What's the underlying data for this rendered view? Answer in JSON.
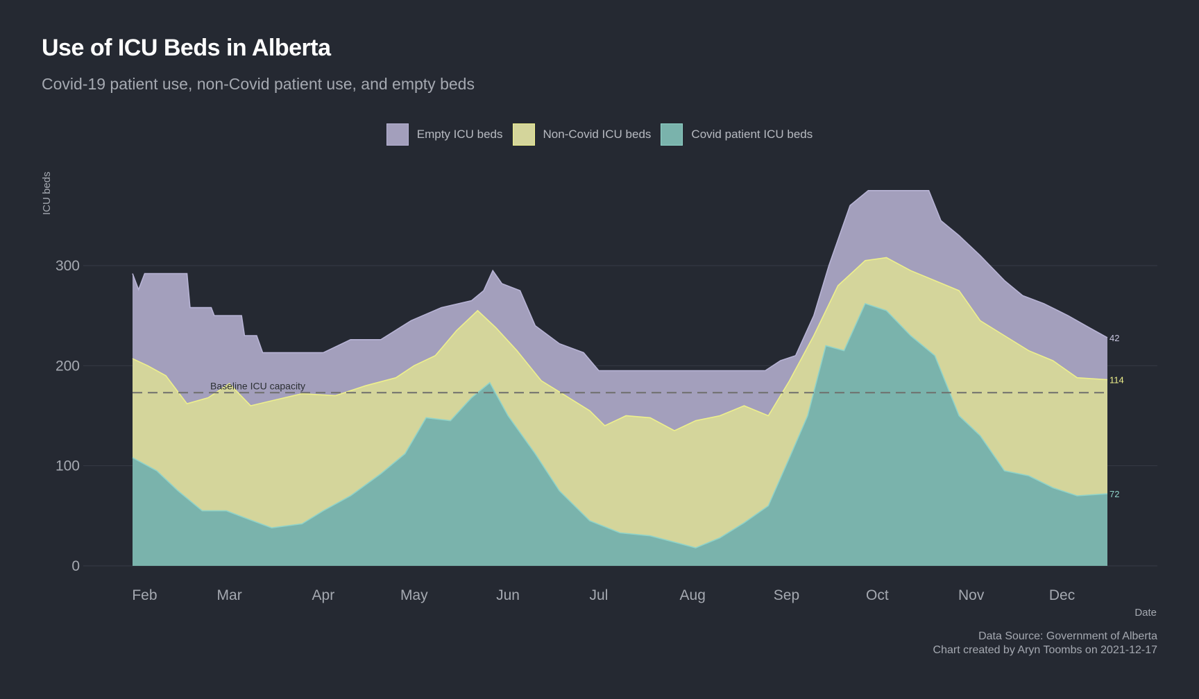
{
  "chart_data": {
    "type": "area",
    "stacked": true,
    "title": "Use of ICU Beds in Alberta",
    "subtitle": "Covid-19 patient use, non-Covid patient use, and empty beds",
    "ylabel": "ICU beds",
    "xlabel": "Date",
    "ylim": [
      0,
      380
    ],
    "yticks": [
      0,
      100,
      200,
      300
    ],
    "grid": true,
    "legend_position": "top",
    "x_range": [
      "2021-01-28",
      "2021-12-16"
    ],
    "xticks": [
      {
        "date": "2021-02-01",
        "label": "Feb"
      },
      {
        "date": "2021-03-01",
        "label": "Mar"
      },
      {
        "date": "2021-04-01",
        "label": "Apr"
      },
      {
        "date": "2021-05-01",
        "label": "May"
      },
      {
        "date": "2021-06-01",
        "label": "Jun"
      },
      {
        "date": "2021-07-01",
        "label": "Jul"
      },
      {
        "date": "2021-08-01",
        "label": "Aug"
      },
      {
        "date": "2021-09-01",
        "label": "Sep"
      },
      {
        "date": "2021-10-01",
        "label": "Oct"
      },
      {
        "date": "2021-11-01",
        "label": "Nov"
      },
      {
        "date": "2021-12-01",
        "label": "Dec"
      }
    ],
    "baseline": {
      "value": 173,
      "label": "Baseline ICU capacity"
    },
    "series": [
      {
        "name": "Covid patient ICU beds",
        "color": "#7ab3ac",
        "stroke": "#8fd3c9",
        "end_label": "72",
        "points": [
          [
            "2021-01-28",
            108
          ],
          [
            "2021-02-05",
            95
          ],
          [
            "2021-02-12",
            75
          ],
          [
            "2021-02-20",
            55
          ],
          [
            "2021-02-28",
            55
          ],
          [
            "2021-03-07",
            47
          ],
          [
            "2021-03-15",
            38
          ],
          [
            "2021-03-25",
            42
          ],
          [
            "2021-04-01",
            55
          ],
          [
            "2021-04-10",
            70
          ],
          [
            "2021-04-20",
            92
          ],
          [
            "2021-04-28",
            112
          ],
          [
            "2021-05-05",
            148
          ],
          [
            "2021-05-13",
            145
          ],
          [
            "2021-05-20",
            168
          ],
          [
            "2021-05-26",
            183
          ],
          [
            "2021-06-01",
            150
          ],
          [
            "2021-06-10",
            112
          ],
          [
            "2021-06-18",
            75
          ],
          [
            "2021-06-28",
            45
          ],
          [
            "2021-07-08",
            33
          ],
          [
            "2021-07-18",
            30
          ],
          [
            "2021-07-28",
            22
          ],
          [
            "2021-08-02",
            18
          ],
          [
            "2021-08-10",
            28
          ],
          [
            "2021-08-18",
            43
          ],
          [
            "2021-08-26",
            60
          ],
          [
            "2021-09-02",
            108
          ],
          [
            "2021-09-08",
            150
          ],
          [
            "2021-09-14",
            220
          ],
          [
            "2021-09-20",
            215
          ],
          [
            "2021-09-27",
            262
          ],
          [
            "2021-10-04",
            255
          ],
          [
            "2021-10-12",
            230
          ],
          [
            "2021-10-20",
            210
          ],
          [
            "2021-10-28",
            150
          ],
          [
            "2021-11-04",
            130
          ],
          [
            "2021-11-12",
            95
          ],
          [
            "2021-11-20",
            90
          ],
          [
            "2021-11-28",
            78
          ],
          [
            "2021-12-06",
            70
          ],
          [
            "2021-12-16",
            72
          ]
        ]
      },
      {
        "name": "Non-Covid ICU beds",
        "color": "#d4d59b",
        "stroke": "#eef08c",
        "end_label": "114",
        "points": [
          [
            "2021-01-28",
            207
          ],
          [
            "2021-02-02",
            200
          ],
          [
            "2021-02-08",
            190
          ],
          [
            "2021-02-15",
            162
          ],
          [
            "2021-02-22",
            168
          ],
          [
            "2021-03-01",
            182
          ],
          [
            "2021-03-08",
            160
          ],
          [
            "2021-03-15",
            165
          ],
          [
            "2021-03-25",
            172
          ],
          [
            "2021-04-05",
            170
          ],
          [
            "2021-04-15",
            180
          ],
          [
            "2021-04-25",
            188
          ],
          [
            "2021-05-01",
            200
          ],
          [
            "2021-05-08",
            210
          ],
          [
            "2021-05-15",
            235
          ],
          [
            "2021-05-22",
            255
          ],
          [
            "2021-05-28",
            238
          ],
          [
            "2021-06-04",
            215
          ],
          [
            "2021-06-12",
            185
          ],
          [
            "2021-06-20",
            170
          ],
          [
            "2021-06-28",
            155
          ],
          [
            "2021-07-03",
            140
          ],
          [
            "2021-07-10",
            150
          ],
          [
            "2021-07-18",
            148
          ],
          [
            "2021-07-26",
            135
          ],
          [
            "2021-08-02",
            145
          ],
          [
            "2021-08-10",
            150
          ],
          [
            "2021-08-18",
            160
          ],
          [
            "2021-08-26",
            150
          ],
          [
            "2021-09-02",
            185
          ],
          [
            "2021-09-10",
            230
          ],
          [
            "2021-09-18",
            280
          ],
          [
            "2021-09-27",
            305
          ],
          [
            "2021-10-04",
            308
          ],
          [
            "2021-10-12",
            295
          ],
          [
            "2021-10-20",
            285
          ],
          [
            "2021-10-28",
            275
          ],
          [
            "2021-11-04",
            245
          ],
          [
            "2021-11-12",
            230
          ],
          [
            "2021-11-20",
            215
          ],
          [
            "2021-11-28",
            205
          ],
          [
            "2021-12-06",
            188
          ],
          [
            "2021-12-16",
            186
          ]
        ]
      },
      {
        "name": "Empty ICU beds",
        "color": "#a39fbc",
        "stroke": "#b8b4d6",
        "end_label": "42",
        "points": [
          [
            "2021-01-28",
            292
          ],
          [
            "2021-01-30",
            276
          ],
          [
            "2021-02-01",
            292
          ],
          [
            "2021-02-15",
            292
          ],
          [
            "2021-02-16",
            258
          ],
          [
            "2021-02-23",
            258
          ],
          [
            "2021-02-24",
            250
          ],
          [
            "2021-03-05",
            250
          ],
          [
            "2021-03-06",
            230
          ],
          [
            "2021-03-10",
            230
          ],
          [
            "2021-03-12",
            213
          ],
          [
            "2021-04-01",
            213
          ],
          [
            "2021-04-10",
            226
          ],
          [
            "2021-04-20",
            226
          ],
          [
            "2021-04-30",
            245
          ],
          [
            "2021-05-10",
            258
          ],
          [
            "2021-05-20",
            265
          ],
          [
            "2021-05-24",
            275
          ],
          [
            "2021-05-27",
            295
          ],
          [
            "2021-05-30",
            282
          ],
          [
            "2021-06-05",
            275
          ],
          [
            "2021-06-10",
            240
          ],
          [
            "2021-06-18",
            222
          ],
          [
            "2021-06-26",
            213
          ],
          [
            "2021-07-01",
            195
          ],
          [
            "2021-08-25",
            195
          ],
          [
            "2021-08-30",
            205
          ],
          [
            "2021-09-04",
            210
          ],
          [
            "2021-09-10",
            250
          ],
          [
            "2021-09-15",
            300
          ],
          [
            "2021-09-22",
            360
          ],
          [
            "2021-09-28",
            375
          ],
          [
            "2021-10-05",
            375
          ],
          [
            "2021-10-18",
            375
          ],
          [
            "2021-10-22",
            345
          ],
          [
            "2021-10-28",
            330
          ],
          [
            "2021-11-04",
            310
          ],
          [
            "2021-11-12",
            285
          ],
          [
            "2021-11-18",
            270
          ],
          [
            "2021-11-25",
            262
          ],
          [
            "2021-12-03",
            250
          ],
          [
            "2021-12-10",
            238
          ],
          [
            "2021-12-16",
            228
          ]
        ]
      }
    ],
    "caption": [
      "Data Source: Government of Alberta",
      "Chart created by Aryn Toombs on 2021-12-17"
    ]
  }
}
